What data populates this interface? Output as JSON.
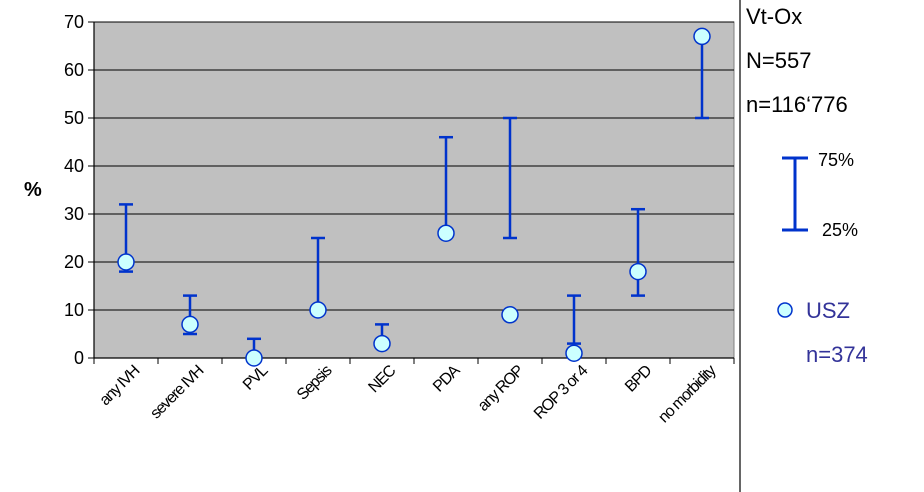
{
  "chart_data": {
    "type": "scatter",
    "ylabel": "%",
    "ylim": [
      0,
      70
    ],
    "yticks": [
      0,
      10,
      20,
      30,
      40,
      50,
      60,
      70
    ],
    "grid": true,
    "categories": [
      "any IVH",
      "severe IVH",
      "PVL",
      "Sepsis",
      "NEC",
      "PDA",
      "any ROP",
      "ROP 3 or 4",
      "BPD",
      "no morbidity"
    ],
    "series": [
      {
        "name": "USZ",
        "values": [
          20,
          7,
          0,
          10,
          3,
          26,
          9,
          1,
          18,
          67
        ]
      },
      {
        "name": "Vt-Ox",
        "q25": [
          18,
          5,
          0,
          10,
          3,
          26,
          25,
          3,
          13,
          50
        ],
        "q75": [
          32,
          13,
          4,
          25,
          7,
          46,
          50,
          13,
          31,
          67
        ]
      }
    ],
    "colors": {
      "plot_bg": "#c0c0c0",
      "range_line": "#0033cc",
      "marker_fill": "#ccffff",
      "marker_stroke": "#0033cc",
      "usz_text": "#333399"
    }
  },
  "legend": {
    "title": "Vt-Ox",
    "N": "N=557",
    "n": "n=116‘776",
    "q75": "75%",
    "q25": "25%",
    "usz": "USZ",
    "usz_n": "n=374"
  }
}
